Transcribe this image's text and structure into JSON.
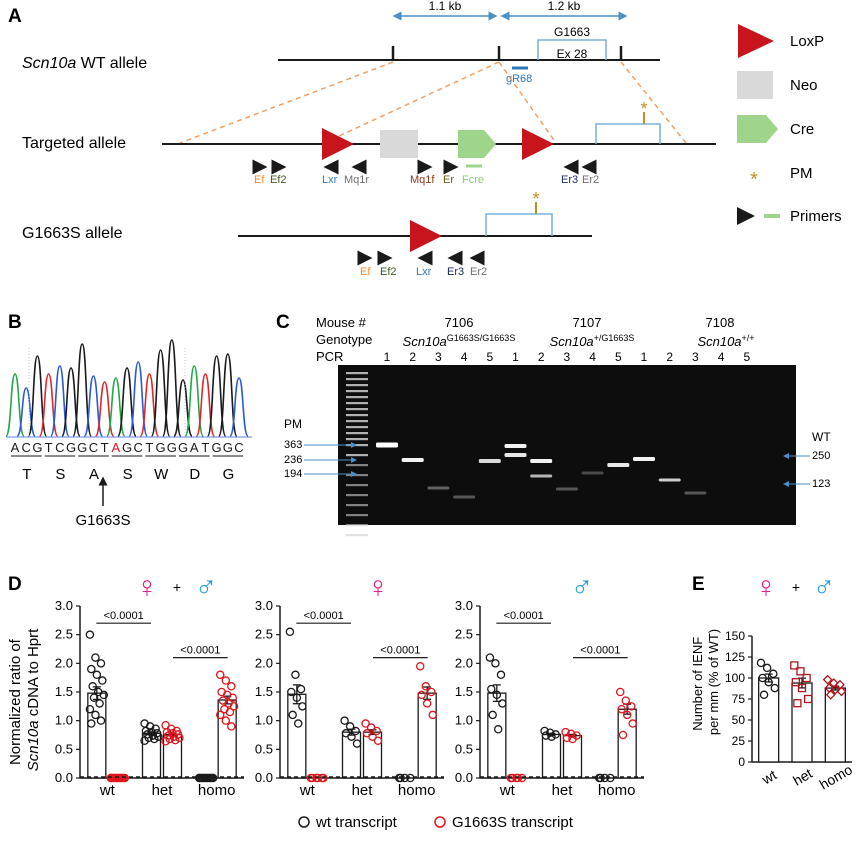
{
  "panel_a": {
    "label": "A",
    "dim_left": "1.1 kb",
    "dim_right": "1.2 kb",
    "g_label": "G1663",
    "exon": "Ex 28",
    "wt_gene": "Scn10a",
    "wt_rest": " WT allele",
    "guide": "gR68",
    "targeted": "Targeted allele",
    "g1663s": "G1663S allele",
    "primers_targeted": [
      "Ef",
      "Ef2",
      "Lxr",
      "Mq1r",
      "Mq1f",
      "Er",
      "Fcre",
      "Er3",
      "Er2"
    ],
    "primers_g1663s": [
      "Ef",
      "Ef2",
      "Lxr",
      "Er3",
      "Er2"
    ],
    "legend": [
      "LoxP",
      "Neo",
      "Cre",
      "PM",
      "Primers"
    ],
    "pm_mark": "*"
  },
  "panel_b": {
    "label": "B",
    "bases": [
      "A",
      "C",
      "G",
      "T",
      "C",
      "G",
      "G",
      "C",
      "T",
      "A",
      "G",
      "C",
      "T",
      "G",
      "G",
      "G",
      "A",
      "T",
      "G",
      "G",
      "C"
    ],
    "amino": [
      "T",
      "S",
      "A",
      "S",
      "W",
      "D",
      "G"
    ],
    "mutation": "G1663S"
  },
  "panel_c": {
    "label": "C",
    "row_labels": [
      "Mouse #",
      "Genotype",
      "PCR"
    ],
    "mice": [
      {
        "id": "7106",
        "gene": "Scn10a",
        "sup": "G1663S/G1663S"
      },
      {
        "id": "7107",
        "gene": "Scn10a",
        "sup": "+/G1663S"
      },
      {
        "id": "7108",
        "gene": "Scn10a",
        "sup": "+/+"
      }
    ],
    "lanes": [
      "1",
      "2",
      "3",
      "4",
      "5",
      "1",
      "2",
      "3",
      "4",
      "5",
      "1",
      "2",
      "3",
      "4",
      "5"
    ],
    "left_title": "PM",
    "left_sizes": [
      "363",
      "236",
      "194"
    ],
    "right_title": "WT",
    "right_sizes": [
      "250",
      "123"
    ]
  },
  "panel_d": {
    "label": "D",
    "ylabel_1": "Normalized ratio of",
    "ylabel_gene": "Scn10a",
    "ylabel_rest": " cDNA to Hprt",
    "plus": "+",
    "female": "♀",
    "male": "♂",
    "legend_wt": "wt transcript",
    "legend_g": "G1663S transcript"
  },
  "panel_e": {
    "label": "E",
    "ylabel_1": "Number of IENF",
    "ylabel_2": "per mm (% of WT)"
  },
  "chart_data": [
    {
      "type": "bar",
      "panel": "D (female + male)",
      "categories": [
        "wt",
        "het",
        "homo"
      ],
      "series": [
        {
          "name": "wt transcript",
          "values": [
            1.48,
            0.78,
            0.0
          ],
          "points": [
            [
              2.5,
              2.1,
              2.0,
              1.9,
              1.8,
              1.7,
              1.6,
              1.5,
              1.45,
              1.4,
              1.3,
              1.2,
              1.1,
              1.0,
              0.95
            ],
            [
              0.95,
              0.9,
              0.86,
              0.82,
              0.8,
              0.78,
              0.76,
              0.74,
              0.72,
              0.7,
              0.68,
              0.65
            ],
            [
              0,
              0,
              0,
              0,
              0,
              0,
              0,
              0,
              0,
              0,
              0,
              0
            ]
          ]
        },
        {
          "name": "G1663S transcript",
          "values": [
            0.0,
            0.76,
            1.36
          ],
          "points": [
            [
              0,
              0,
              0,
              0,
              0,
              0,
              0,
              0,
              0,
              0,
              0,
              0
            ],
            [
              0.92,
              0.86,
              0.82,
              0.8,
              0.78,
              0.76,
              0.74,
              0.72,
              0.7,
              0.68,
              0.66,
              0.64
            ],
            [
              1.8,
              1.7,
              1.6,
              1.5,
              1.45,
              1.4,
              1.35,
              1.3,
              1.25,
              1.2,
              1.15,
              1.1,
              1.0,
              0.9
            ]
          ]
        }
      ],
      "comparisons": [
        {
          "groups": [
            "wt",
            "het"
          ],
          "p": "<0.0001"
        },
        {
          "groups": [
            "het",
            "homo"
          ],
          "p": "<0.0001"
        }
      ],
      "ylim": [
        0,
        3.0
      ],
      "yticks": [
        "0.0",
        "0.5",
        "1.0",
        "1.5",
        "2.0",
        "2.5",
        "3.0"
      ]
    },
    {
      "type": "bar",
      "panel": "D (female)",
      "categories": [
        "wt",
        "het",
        "homo"
      ],
      "series": [
        {
          "name": "wt transcript",
          "values": [
            1.46,
            0.8,
            0.0
          ],
          "points": [
            [
              2.55,
              1.8,
              1.55,
              1.5,
              1.4,
              1.25,
              1.1,
              0.95
            ],
            [
              1.0,
              0.9,
              0.82,
              0.78,
              0.72,
              0.6
            ],
            [
              0,
              0,
              0,
              0
            ]
          ]
        },
        {
          "name": "G1663S transcript",
          "values": [
            0.0,
            0.8,
            1.48
          ],
          "points": [
            [
              0,
              0,
              0,
              0,
              0,
              0
            ],
            [
              0.95,
              0.88,
              0.82,
              0.78,
              0.72,
              0.65
            ],
            [
              1.95,
              1.6,
              1.5,
              1.45,
              1.3,
              1.1
            ]
          ]
        }
      ],
      "comparisons": [
        {
          "groups": [
            "wt",
            "het"
          ],
          "p": "<0.0001"
        },
        {
          "groups": [
            "het",
            "homo"
          ],
          "p": "<0.0001"
        }
      ],
      "ylim": [
        0,
        3.0
      ],
      "yticks": [
        "0.0",
        "0.5",
        "1.0",
        "1.5",
        "2.0",
        "2.5",
        "3.0"
      ]
    },
    {
      "type": "bar",
      "panel": "D (male)",
      "categories": [
        "wt",
        "het",
        "homo"
      ],
      "series": [
        {
          "name": "wt transcript",
          "values": [
            1.48,
            0.76,
            0.0
          ],
          "points": [
            [
              2.1,
              2.0,
              1.8,
              1.55,
              1.45,
              1.3,
              1.1,
              0.85
            ],
            [
              0.82,
              0.79,
              0.76,
              0.74,
              0.72
            ],
            [
              0,
              0,
              0,
              0
            ]
          ]
        },
        {
          "name": "G1663S transcript",
          "values": [
            0.0,
            0.74,
            1.2
          ],
          "points": [
            [
              0,
              0,
              0,
              0,
              0
            ],
            [
              0.8,
              0.77,
              0.74,
              0.7,
              0.68
            ],
            [
              1.5,
              1.35,
              1.25,
              1.2,
              1.1,
              0.95,
              0.75
            ]
          ]
        }
      ],
      "comparisons": [
        {
          "groups": [
            "wt",
            "het"
          ],
          "p": "<0.0001"
        },
        {
          "groups": [
            "het",
            "homo"
          ],
          "p": "<0.0001"
        }
      ],
      "ylim": [
        0,
        3.0
      ],
      "yticks": [
        "0.0",
        "0.5",
        "1.0",
        "1.5",
        "2.0",
        "2.5",
        "3.0"
      ]
    },
    {
      "type": "bar",
      "panel": "E",
      "categories": [
        "wt",
        "het",
        "homo"
      ],
      "values": [
        100,
        94,
        88
      ],
      "points": [
        [
          118,
          112,
          105,
          100,
          95,
          88,
          80
        ],
        [
          115,
          108,
          100,
          95,
          88,
          75,
          70
        ],
        [
          98,
          94,
          92,
          88,
          86,
          84,
          80
        ]
      ],
      "ylim": [
        0,
        150
      ],
      "yticks": [
        "0",
        "25",
        "50",
        "75",
        "100",
        "125",
        "150"
      ]
    }
  ]
}
